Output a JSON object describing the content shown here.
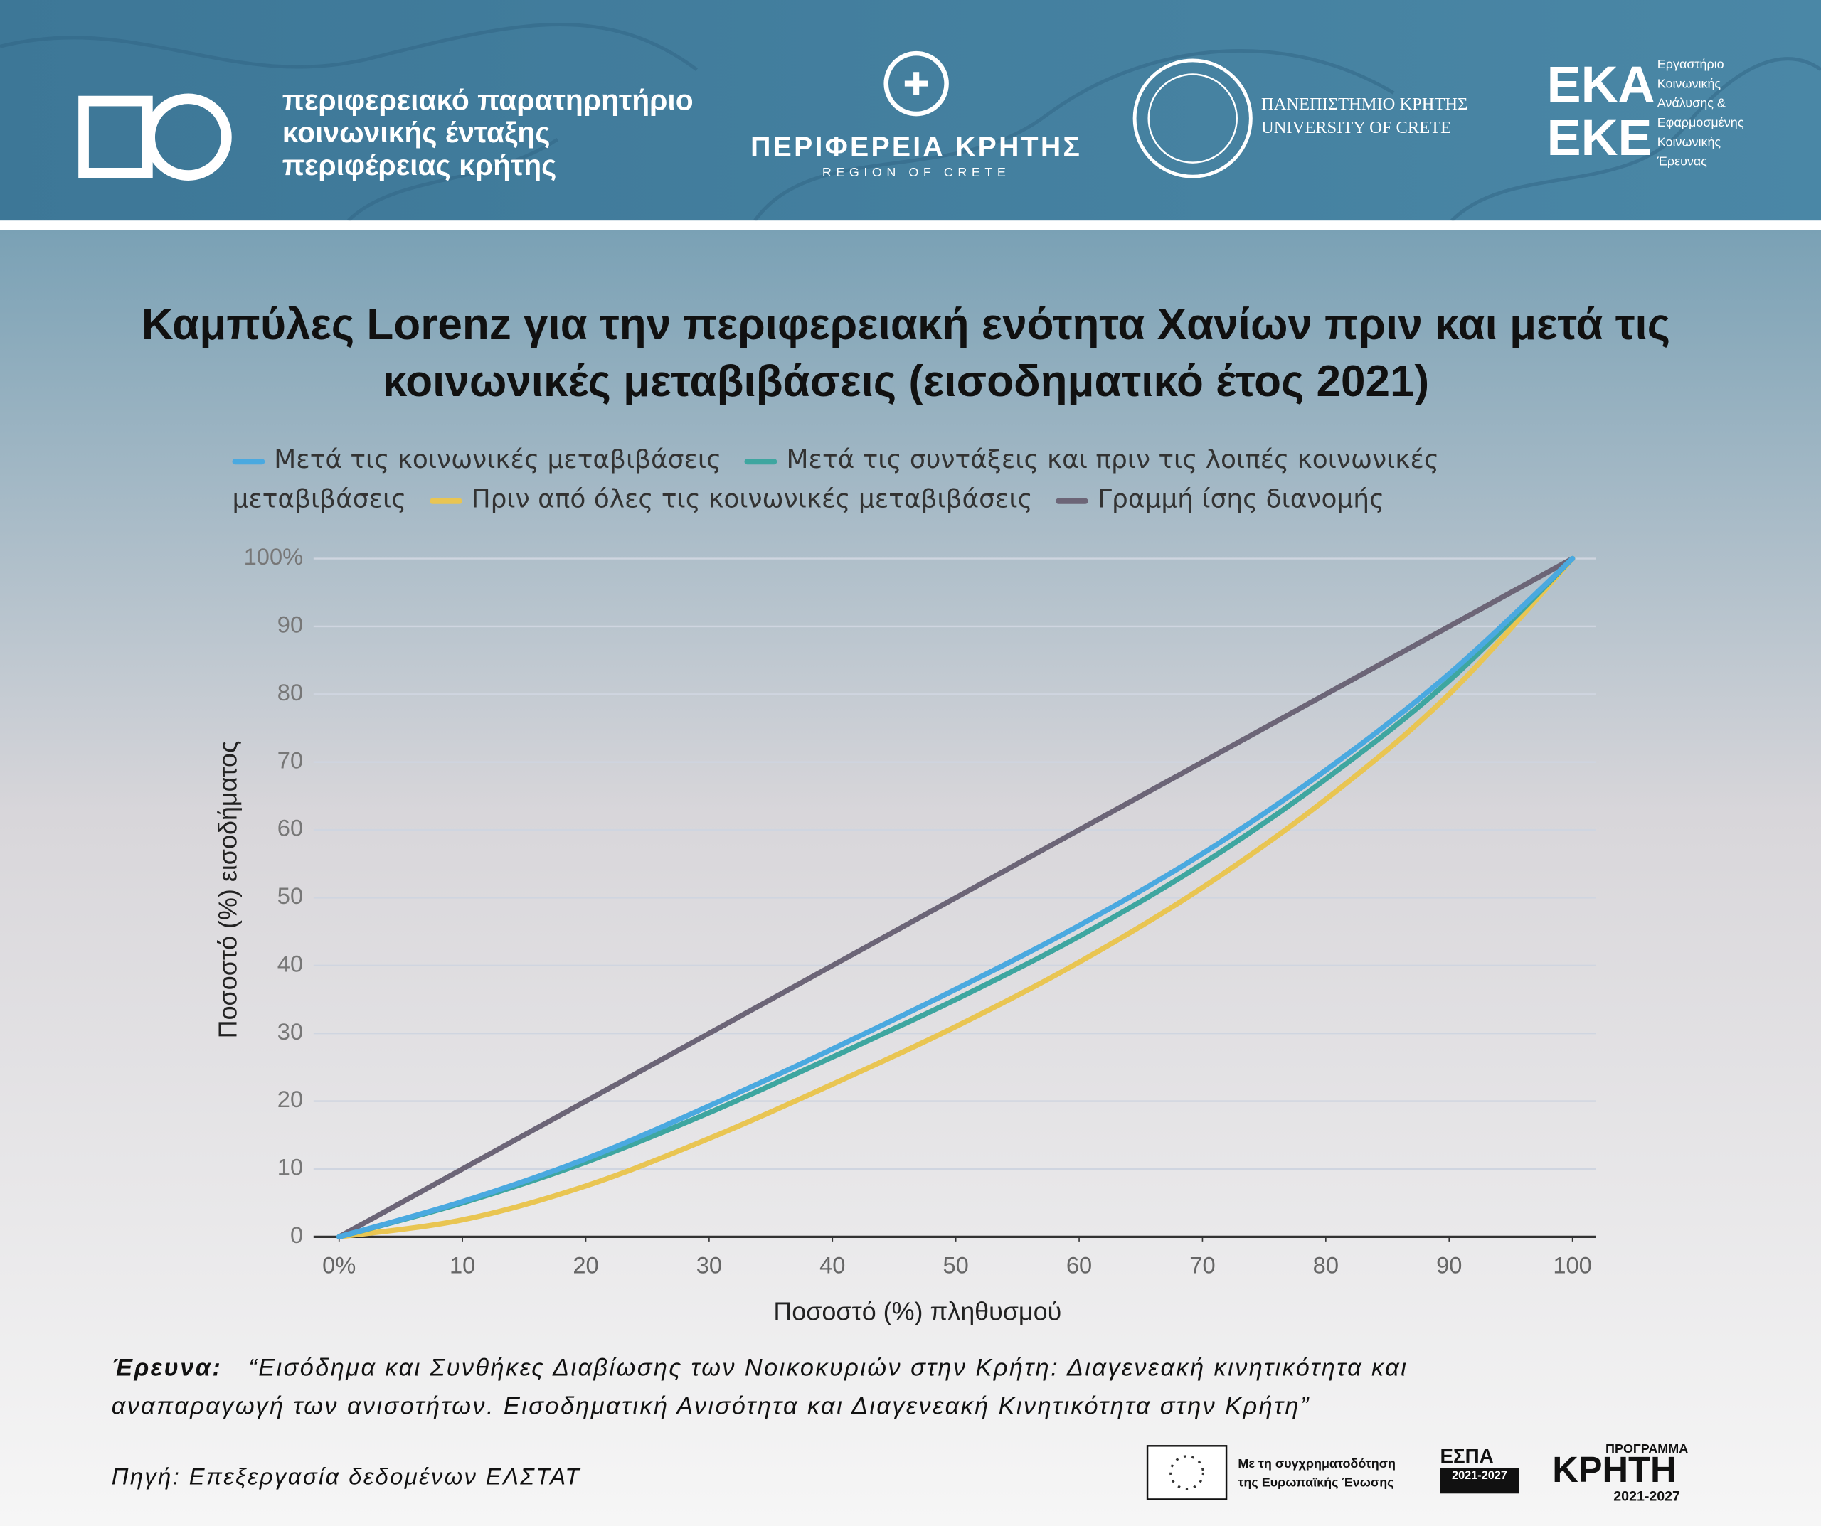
{
  "header": {
    "observatory": [
      "περιφερειακό παρατηρητήριο",
      "κοινωνικής ένταξης",
      "περιφέρειας κρήτης"
    ],
    "region": "ΠΕΡΙΦΕΡΕΙΑ ΚΡΗΤΗΣ",
    "region_en": "REGION OF CRETE",
    "university": "ΠΑΝΕΠΙΣΤΗΜΙΟ ΚΡΗΤΗΣ",
    "university_en": "UNIVERSITY OF CRETE",
    "lab_logo": [
      "ΕΚΑ",
      "ΕΚΕ"
    ],
    "lab": [
      "Εργαστήριο",
      "Κοινωνικής",
      "Ανάλυσης &",
      "Εφαρμοσμένης",
      "Κοινωνικής",
      "Έρευνας"
    ]
  },
  "chart_data": {
    "type": "line",
    "title": [
      "Καμπύλες Lorenz για την περιφερειακή ενότητα Χανίων πριν και μετά τις",
      "κοινωνικές μεταβιβάσεις (εισοδηματικό έτος 2021)"
    ],
    "x_label": "Ποσοστό (%) πληθυσμού",
    "y_label": "Ποσοστό (%) εισοδήματος",
    "x": [
      0,
      10,
      20,
      30,
      40,
      50,
      60,
      70,
      80,
      90,
      100
    ],
    "series": [
      {
        "name": "Μετά τις κοινωνικές μεταβιβάσεις",
        "color": "#4aa9e0",
        "values": [
          0,
          5.2,
          11.5,
          19.3,
          27.7,
          36.5,
          45.9,
          56.5,
          68.8,
          83,
          100
        ]
      },
      {
        "name": "Μετά τις συντάξεις και πριν τις λοιπές κοινωνικές μεταβιβάσεις",
        "color": "#3ea6a0",
        "values": [
          0,
          5,
          11,
          18.3,
          26.5,
          35,
          44.3,
          55,
          67.5,
          82,
          100
        ]
      },
      {
        "name": "Πριν από όλες τις κοινωνικές μεταβιβάσεις",
        "color": "#e9c552",
        "values": [
          0,
          2.5,
          7.5,
          14.5,
          22.5,
          31,
          40.5,
          51.5,
          64.5,
          80,
          100
        ]
      },
      {
        "name": "Γραμμή ίσης διανομής",
        "color": "#6c6577",
        "values": [
          0,
          10,
          20,
          30,
          40,
          50,
          60,
          70,
          80,
          90,
          100
        ]
      }
    ],
    "xlim": [
      0,
      100
    ],
    "ylim": [
      0,
      100
    ],
    "xticks": [
      {
        "value": 0,
        "label": "0%"
      },
      10,
      20,
      30,
      40,
      50,
      60,
      70,
      80,
      90,
      100
    ],
    "yticks": [
      0,
      10,
      20,
      30,
      40,
      50,
      60,
      70,
      80,
      90,
      {
        "value": 100,
        "label": "100%"
      }
    ],
    "grid": true,
    "legend": "top"
  },
  "footer": {
    "research_label": "Έρευνα:",
    "research_lines": [
      "“Εισόδημα και Συνθήκες Διαβίωσης των Νοικοκυριών στην Κρήτη: Διαγενεακή κινητικότητα και",
      "αναπαραγωγή των ανισοτήτων. Εισοδηματική Ανισότητα και Διαγενεακή  Κινητικότητα στην Κρήτη”"
    ],
    "source": "Πηγή: Επεξεργασία δεδομένων ΕΛΣΤΑΤ",
    "eu": [
      "Με τη συγχρηματοδότηση",
      "της Ευρωπαϊκής Ένωσης"
    ],
    "espa": [
      "ΕΣΠΑ",
      "2021-2027"
    ],
    "programme": [
      "ΠΡΟΓΡΑΜΜΑ",
      "ΚΡΗΤΗ",
      "2021-2027"
    ]
  }
}
